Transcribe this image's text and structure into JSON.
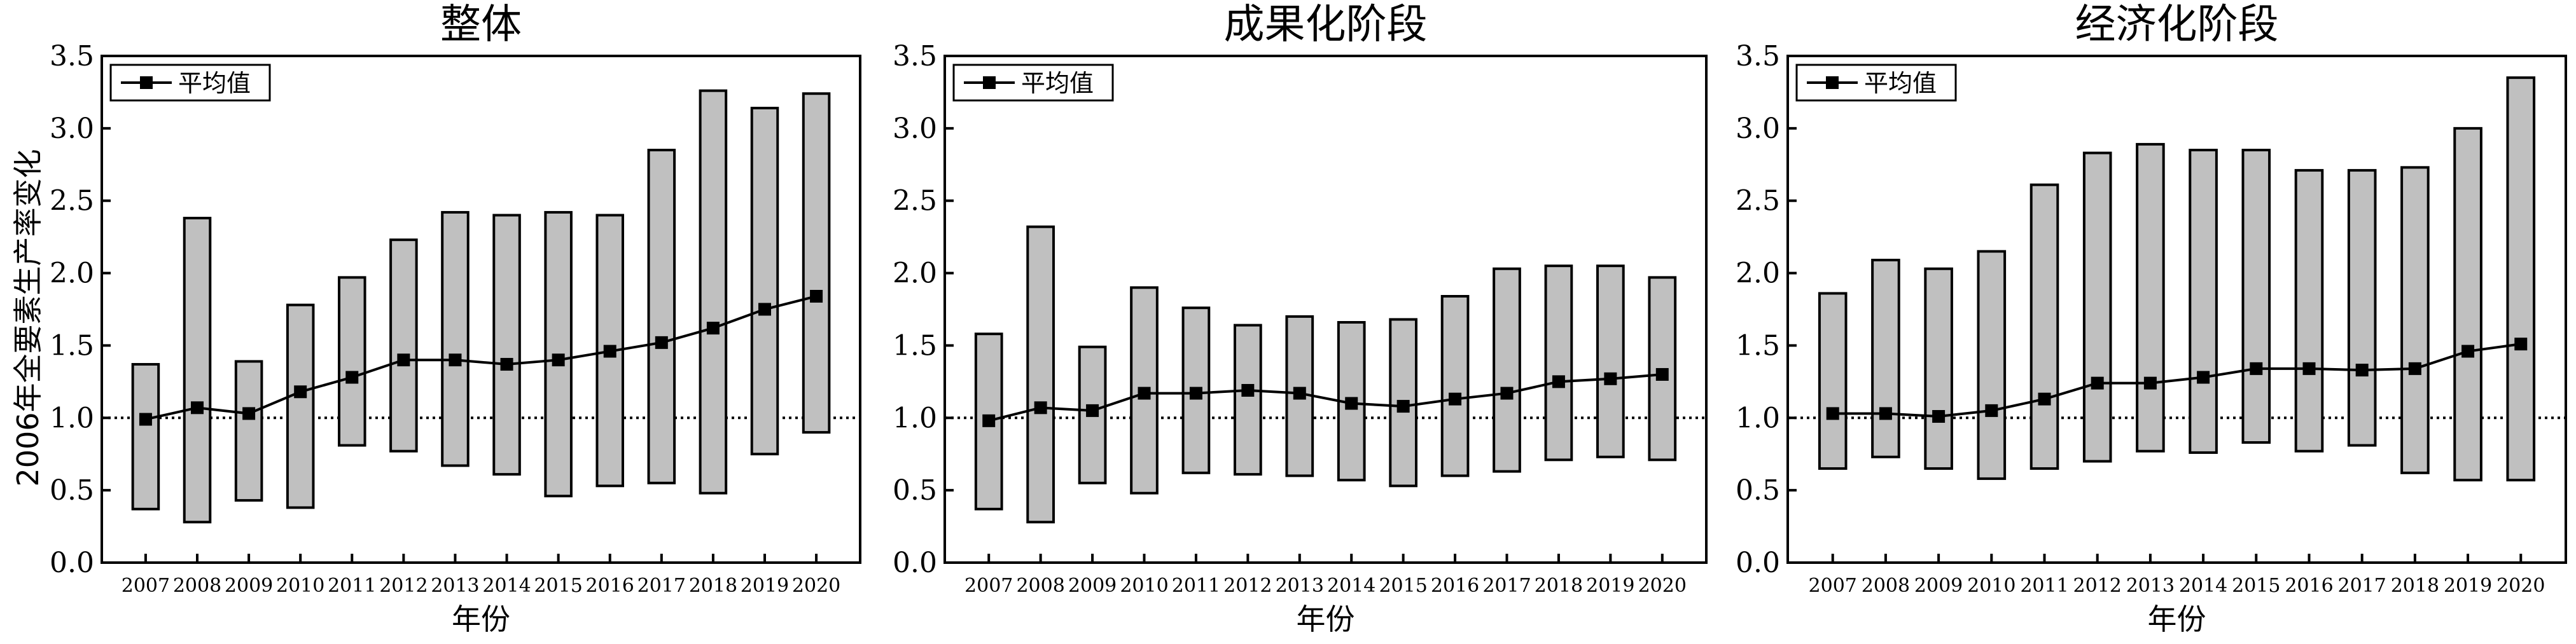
{
  "ylabel": "2006年全要素生产率变化",
  "chart_data": [
    {
      "type": "floating-bar-with-line",
      "title": "整体",
      "xlabel": "年份",
      "ylabel": "2006年全要素生产率变化",
      "legend": {
        "label": "平均值",
        "placement": "top-left"
      },
      "reference_line": 1.0,
      "ylim": [
        0.0,
        3.5
      ],
      "yticks": [
        "0.0",
        "0.5",
        "1.0",
        "1.5",
        "2.0",
        "2.5",
        "3.0",
        "3.5"
      ],
      "categories": [
        "2007",
        "2008",
        "2009",
        "2010",
        "2011",
        "2012",
        "2013",
        "2014",
        "2015",
        "2016",
        "2017",
        "2018",
        "2019",
        "2020"
      ],
      "bar_low": [
        0.37,
        0.28,
        0.43,
        0.38,
        0.81,
        0.77,
        0.67,
        0.61,
        0.46,
        0.53,
        0.55,
        0.48,
        0.75,
        0.9
      ],
      "bar_high": [
        1.37,
        2.38,
        1.39,
        1.78,
        1.97,
        2.23,
        2.42,
        2.4,
        2.42,
        2.4,
        2.85,
        3.26,
        3.14,
        3.24
      ],
      "series": [
        {
          "name": "平均值",
          "values": [
            0.99,
            1.07,
            1.03,
            1.18,
            1.28,
            1.4,
            1.4,
            1.37,
            1.4,
            1.46,
            1.52,
            1.62,
            1.75,
            1.84
          ]
        }
      ]
    },
    {
      "type": "floating-bar-with-line",
      "title": "成果化阶段",
      "xlabel": "年份",
      "legend": {
        "label": "平均值",
        "placement": "top-left"
      },
      "reference_line": 1.0,
      "ylim": [
        0.0,
        3.5
      ],
      "yticks": [
        "0.0",
        "0.5",
        "1.0",
        "1.5",
        "2.0",
        "2.5",
        "3.0",
        "3.5"
      ],
      "categories": [
        "2007",
        "2008",
        "2009",
        "2010",
        "2011",
        "2012",
        "2013",
        "2014",
        "2015",
        "2016",
        "2017",
        "2018",
        "2019",
        "2020"
      ],
      "bar_low": [
        0.37,
        0.28,
        0.55,
        0.48,
        0.62,
        0.61,
        0.6,
        0.57,
        0.53,
        0.6,
        0.63,
        0.71,
        0.73,
        0.71
      ],
      "bar_high": [
        1.58,
        2.32,
        1.49,
        1.9,
        1.76,
        1.64,
        1.7,
        1.66,
        1.68,
        1.84,
        2.03,
        2.05,
        2.05,
        1.97
      ],
      "series": [
        {
          "name": "平均值",
          "values": [
            0.98,
            1.07,
            1.05,
            1.17,
            1.17,
            1.19,
            1.17,
            1.1,
            1.08,
            1.13,
            1.17,
            1.25,
            1.27,
            1.3
          ]
        }
      ]
    },
    {
      "type": "floating-bar-with-line",
      "title": "经济化阶段",
      "xlabel": "年份",
      "legend": {
        "label": "平均值",
        "placement": "top-left"
      },
      "reference_line": 1.0,
      "ylim": [
        0.0,
        3.5
      ],
      "yticks": [
        "0.0",
        "0.5",
        "1.0",
        "1.5",
        "2.0",
        "2.5",
        "3.0",
        "3.5"
      ],
      "categories": [
        "2007",
        "2008",
        "2009",
        "2010",
        "2011",
        "2012",
        "2013",
        "2014",
        "2015",
        "2016",
        "2017",
        "2018",
        "2019",
        "2020"
      ],
      "bar_low": [
        0.65,
        0.73,
        0.65,
        0.58,
        0.65,
        0.7,
        0.77,
        0.76,
        0.83,
        0.77,
        0.81,
        0.62,
        0.57,
        0.57
      ],
      "bar_high": [
        1.86,
        2.09,
        2.03,
        2.15,
        2.61,
        2.83,
        2.89,
        2.85,
        2.85,
        2.71,
        2.71,
        2.73,
        3.0,
        3.35
      ],
      "series": [
        {
          "name": "平均值",
          "values": [
            1.03,
            1.03,
            1.01,
            1.05,
            1.13,
            1.24,
            1.24,
            1.28,
            1.34,
            1.34,
            1.33,
            1.34,
            1.46,
            1.51
          ]
        }
      ]
    }
  ],
  "colors": {
    "bar_fill": "#c0c0c0",
    "stroke": "#000000",
    "background": "#ffffff"
  }
}
